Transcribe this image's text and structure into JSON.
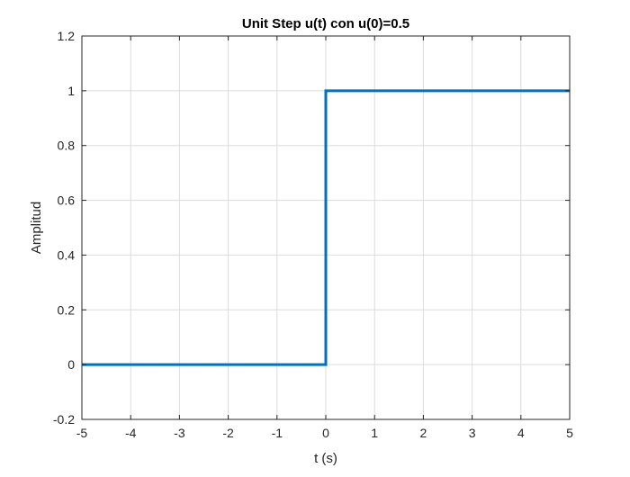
{
  "chart_data": {
    "type": "line",
    "title": "Unit Step u(t) con u(0)=0.5",
    "xlabel": "t (s)",
    "ylabel": "Amplitud",
    "xlim": [
      -5,
      5
    ],
    "ylim": [
      -0.2,
      1.2
    ],
    "xticks": [
      "-5",
      "-4",
      "-3",
      "-2",
      "-1",
      "0",
      "1",
      "2",
      "3",
      "4",
      "5"
    ],
    "yticks": [
      "-0.2",
      "0",
      "0.2",
      "0.4",
      "0.6",
      "0.8",
      "1",
      "1.2"
    ],
    "grid": true,
    "series": [
      {
        "color": "#0072BD",
        "x": [
          -5,
          0,
          0,
          5
        ],
        "y": [
          0,
          0,
          1,
          1
        ]
      }
    ]
  }
}
